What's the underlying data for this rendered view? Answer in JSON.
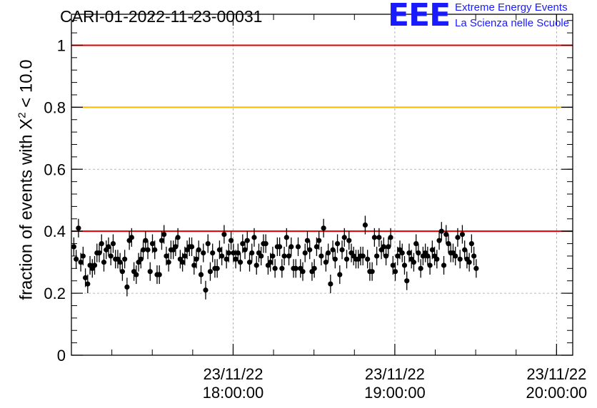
{
  "header": {
    "run_title": "CARI-01-2022-11-23-00031",
    "logo_mark": "EEE",
    "logo_line1": "Extreme Energy Events",
    "logo_line2": "La Scienza nelle Scuole"
  },
  "colors": {
    "logo_blue": "#1a1aff",
    "line_red": "#e00000",
    "line_orange": "#ffb800",
    "points": "#000000",
    "grid": "#a0a0a0"
  },
  "chart_data": {
    "type": "scatter",
    "title": "",
    "xlabel": "",
    "ylabel_prefix": "fraction of events with ",
    "ylabel_symbol": "X",
    "ylabel_sup": "2",
    "ylabel_suffix": " < 10.0",
    "xlim_hours": [
      17.0,
      20.1
    ],
    "ylim": [
      0,
      1.1
    ],
    "y_ticks": [
      0,
      0.2,
      0.4,
      0.6,
      0.8,
      1
    ],
    "y_tick_labels": [
      "0",
      "0.2",
      "0.4",
      "0.6",
      "0.8",
      "1"
    ],
    "x_major_ticks": [
      {
        "hour": 18,
        "date": "23/11/22",
        "time": "18:00:00"
      },
      {
        "hour": 19,
        "date": "23/11/22",
        "time": "19:00:00"
      },
      {
        "hour": 20,
        "date": "23/11/22",
        "time": "20:00:00"
      }
    ],
    "x_minor_step_hours": 0.25,
    "grid": true,
    "reference_lines": [
      {
        "y": 1.0,
        "color": "#e00000"
      },
      {
        "y": 0.8,
        "color": "#ffb800"
      },
      {
        "y": 0.4,
        "color": "#e00000"
      }
    ],
    "series": [
      {
        "x_start_hour": 17.015,
        "x_step_hours": 0.0143,
        "y_error": 0.03,
        "y": [
          0.35,
          0.31,
          0.41,
          0.3,
          0.32,
          0.25,
          0.23,
          0.29,
          0.28,
          0.29,
          0.33,
          0.33,
          0.36,
          0.3,
          0.34,
          0.35,
          0.32,
          0.36,
          0.31,
          0.31,
          0.3,
          0.27,
          0.31,
          0.22,
          0.37,
          0.38,
          0.27,
          0.26,
          0.3,
          0.31,
          0.34,
          0.37,
          0.34,
          0.27,
          0.36,
          0.34,
          0.26,
          0.26,
          0.37,
          0.39,
          0.32,
          0.3,
          0.34,
          0.34,
          0.35,
          0.38,
          0.31,
          0.3,
          0.32,
          0.34,
          0.35,
          0.35,
          0.29,
          0.31,
          0.34,
          0.26,
          0.33,
          0.21,
          0.36,
          0.27,
          0.33,
          0.28,
          0.28,
          0.34,
          0.32,
          0.39,
          0.31,
          0.33,
          0.37,
          0.33,
          0.31,
          0.33,
          0.3,
          0.36,
          0.34,
          0.37,
          0.3,
          0.33,
          0.38,
          0.29,
          0.33,
          0.32,
          0.36,
          0.36,
          0.29,
          0.3,
          0.32,
          0.28,
          0.35,
          0.35,
          0.28,
          0.32,
          0.38,
          0.32,
          0.35,
          0.28,
          0.28,
          0.35,
          0.28,
          0.27,
          0.33,
          0.37,
          0.34,
          0.27,
          0.28,
          0.35,
          0.37,
          0.32,
          0.41,
          0.3,
          0.33,
          0.23,
          0.34,
          0.31,
          0.36,
          0.26,
          0.34,
          0.38,
          0.31,
          0.37,
          0.33,
          0.32,
          0.31,
          0.31,
          0.32,
          0.32,
          0.42,
          0.31,
          0.27,
          0.27,
          0.38,
          0.32,
          0.38,
          0.34,
          0.35,
          0.32,
          0.35,
          0.38,
          0.29,
          0.27,
          0.32,
          0.34,
          0.33,
          0.29,
          0.24,
          0.33,
          0.31,
          0.3,
          0.36,
          0.33,
          0.28,
          0.32,
          0.33,
          0.32,
          0.29,
          0.34,
          0.32,
          0.31,
          0.37,
          0.4,
          0.29,
          0.39,
          0.36,
          0.33,
          0.33,
          0.32,
          0.38,
          0.31,
          0.39,
          0.34,
          0.31,
          0.3,
          0.36,
          0.32,
          0.28
        ]
      }
    ]
  }
}
